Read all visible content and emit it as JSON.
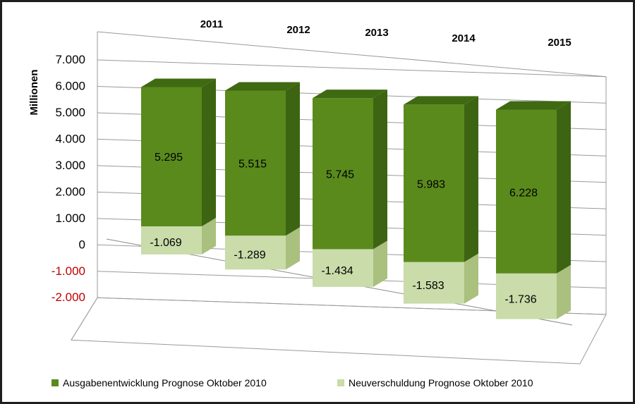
{
  "chart_data": {
    "type": "bar",
    "stacked": true,
    "three_d": true,
    "categories": [
      "2011",
      "2012",
      "2013",
      "2014",
      "2015"
    ],
    "series": [
      {
        "name": "Ausgabenentwicklung Prognose Oktober 2010",
        "values": [
          5295,
          5515,
          5745,
          5983,
          6228
        ],
        "color": "#5a8a1c"
      },
      {
        "name": "Neuverschuldung Prognose Oktober 2010",
        "values": [
          -1069,
          -1289,
          -1434,
          -1583,
          -1736
        ],
        "color": "#c9dcaa"
      }
    ],
    "data_labels": {
      "series0": [
        "5.295",
        "5.515",
        "5.745",
        "5.983",
        "6.228"
      ],
      "series1": [
        "-1.069",
        "-1.289",
        "-1.434",
        "-1.583",
        "-1.736"
      ]
    },
    "ylabel": "Millionen",
    "ylim": [
      -2000,
      7000
    ],
    "yticks": [
      {
        "value": 7000,
        "label": "7.000"
      },
      {
        "value": 6000,
        "label": "6.000"
      },
      {
        "value": 5000,
        "label": "5.000"
      },
      {
        "value": 4000,
        "label": "4.000"
      },
      {
        "value": 3000,
        "label": "3.000"
      },
      {
        "value": 2000,
        "label": "2.000"
      },
      {
        "value": 1000,
        "label": "1.000"
      },
      {
        "value": 0,
        "label": "0"
      },
      {
        "value": -1000,
        "label": "-1.000"
      },
      {
        "value": -2000,
        "label": "-2.000"
      }
    ],
    "negative_tick_color": "#c00000",
    "grid": true,
    "legend_position": "bottom"
  }
}
